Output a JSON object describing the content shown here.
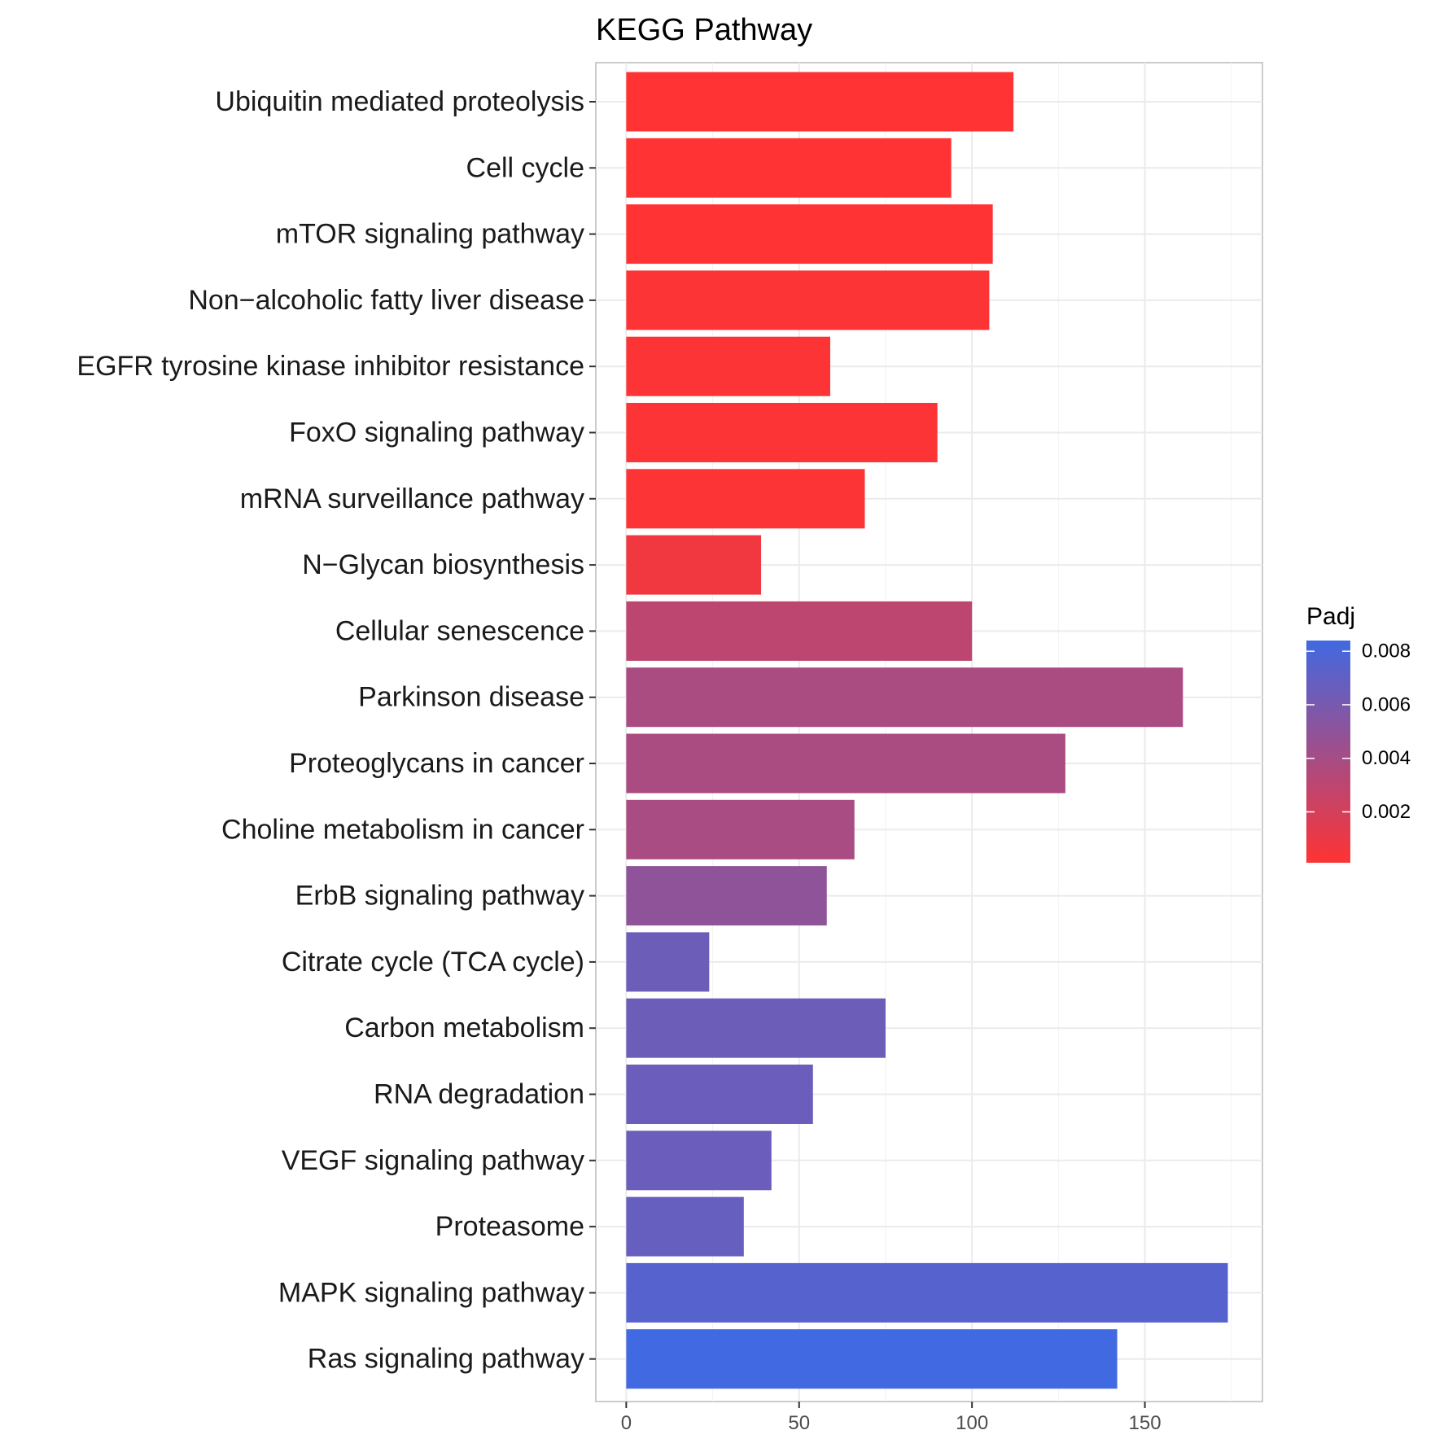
{
  "chart_data": {
    "type": "bar",
    "orientation": "horizontal",
    "title": "KEGG Pathway",
    "xlabel": "",
    "ylabel": "",
    "xlim": [
      -8.8,
      184
    ],
    "x_ticks": [
      0,
      50,
      100,
      150
    ],
    "grid": true,
    "categories": [
      "Ubiquitin mediated proteolysis",
      "Cell cycle",
      "mTOR signaling pathway",
      "Non−alcoholic fatty liver disease",
      "EGFR tyrosine kinase inhibitor resistance",
      "FoxO signaling pathway",
      "mRNA surveillance pathway",
      "N−Glycan biosynthesis",
      "Cellular senescence",
      "Parkinson disease",
      "Proteoglycans in cancer",
      "Choline metabolism in cancer",
      "ErbB signaling pathway",
      "Citrate cycle (TCA cycle)",
      "Carbon metabolism",
      "RNA degradation",
      "VEGF signaling pathway",
      "Proteasome",
      "MAPK signaling pathway",
      "Ras signaling pathway"
    ],
    "values": [
      112,
      94,
      106,
      105,
      59,
      90,
      69,
      39,
      100,
      161,
      127,
      66,
      58,
      24,
      75,
      54,
      42,
      34,
      174,
      142
    ],
    "padj": [
      0.0001,
      0.0001,
      0.0001,
      0.0002,
      0.0002,
      0.0002,
      0.0002,
      0.0007,
      0.003,
      0.0038,
      0.0038,
      0.0039,
      0.005,
      0.0065,
      0.0065,
      0.0066,
      0.0066,
      0.0068,
      0.0075,
      0.0084
    ],
    "legend": {
      "title": "Padj",
      "position": "right",
      "ticks": [
        "0.002",
        "0.004",
        "0.006",
        "0.008"
      ],
      "tick_values": [
        0.002,
        0.004,
        0.006,
        0.008
      ],
      "range": [
        0.0001,
        0.0084
      ],
      "low_color": "#FF3333",
      "high_color": "#4169E1"
    }
  }
}
